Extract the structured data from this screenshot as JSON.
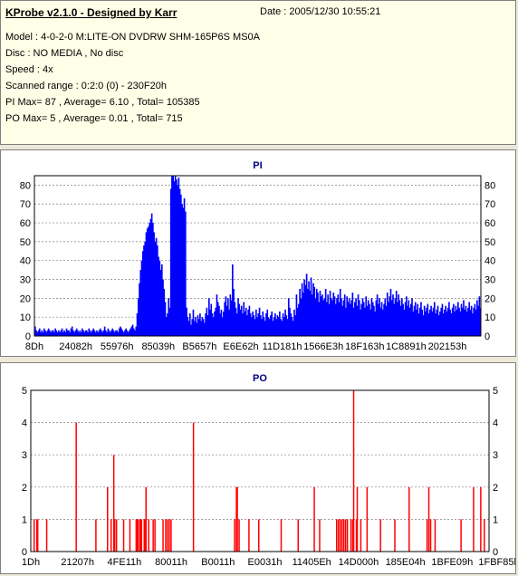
{
  "info": {
    "title": "KProbe v2.1.0 - Designed by Karr",
    "date": "Date : 2005/12/30 10:55:21",
    "model": "Model : 4-0-2-0 M:LITE-ON DVDRW SHM-165P6S MS0A",
    "disc": "Disc : NO MEDIA , No disc",
    "speed": "Speed : 4x",
    "scanned_range": "Scanned range : 0:2:0 (0) - 230F20h",
    "pi_stats": "PI Max= 87 , Average= 6.10 , Total= 105385",
    "po_stats": "PO Max= 5 , Average= 0.01 , Total= 715"
  },
  "colors": {
    "info_bg": "#ffffe7",
    "window_bg": "#ece9d8",
    "title_color": "#000080",
    "pi_bar": "#0000ff",
    "po_bar": "#ff0000",
    "grid": "#808080"
  },
  "chart_data": [
    {
      "type": "bar",
      "title": "PI",
      "ylim": [
        0,
        85
      ],
      "yticks": [
        "0",
        "10",
        "20",
        "30",
        "40",
        "50",
        "60",
        "70",
        "80"
      ],
      "xticks": [
        "8Dh",
        "24082h",
        "55976h",
        "85039h",
        "B5657h",
        "E6E62h",
        "11D181h",
        "1566E3h",
        "18F163h",
        "1C8891h",
        "202153h"
      ],
      "grid": "dashed horizontal",
      "series": [
        {
          "values": [
            5,
            3,
            2,
            3,
            4,
            2,
            3,
            2,
            4,
            3,
            2,
            3,
            4,
            3,
            2,
            3,
            3,
            2,
            4,
            3,
            2,
            3,
            2,
            3,
            4,
            2,
            3,
            2,
            4,
            3,
            3,
            2,
            4,
            5,
            3,
            2,
            3,
            4,
            3,
            2,
            3,
            2,
            4,
            3,
            2,
            3,
            3,
            2,
            4,
            3,
            2,
            3,
            4,
            3,
            2,
            3,
            2,
            3,
            4,
            3,
            2,
            3,
            5,
            3,
            2,
            4,
            3,
            2,
            3,
            4,
            3,
            2,
            3,
            3,
            2,
            4,
            5,
            4,
            3,
            2,
            3,
            4,
            3,
            2,
            3,
            4,
            5,
            6,
            4,
            3,
            5,
            12,
            20,
            28,
            35,
            40,
            45,
            48,
            50,
            55,
            57,
            58,
            60,
            62,
            65,
            60,
            55,
            50,
            52,
            48,
            42,
            40,
            35,
            38,
            30,
            25,
            18,
            10,
            12,
            20,
            15,
            78,
            85,
            87,
            82,
            86,
            83,
            80,
            84,
            78,
            75,
            70,
            68,
            73,
            66,
            15,
            10,
            8,
            12,
            6,
            9,
            14,
            8,
            10,
            7,
            11,
            9,
            12,
            8,
            10,
            9,
            7,
            12,
            15,
            11,
            20,
            14,
            17,
            12,
            10,
            13,
            15,
            22,
            18,
            16,
            12,
            14,
            10,
            13,
            18,
            21,
            16,
            20,
            14,
            22,
            19,
            38,
            25,
            18,
            15,
            12,
            20,
            17,
            14,
            16,
            12,
            18,
            13,
            15,
            11,
            14,
            16,
            12,
            10,
            13,
            11,
            9,
            14,
            10,
            12,
            15,
            11,
            9,
            13,
            10,
            8,
            12,
            14,
            10,
            9,
            11,
            13,
            8,
            10,
            12,
            9,
            11,
            10,
            13,
            9,
            8,
            12,
            10,
            14,
            11,
            9,
            20,
            15,
            12,
            10,
            8,
            14,
            11,
            22,
            15,
            17,
            25,
            20,
            28,
            23,
            30,
            27,
            33,
            25,
            29,
            24,
            31,
            22,
            28,
            26,
            20,
            25,
            23,
            18,
            24,
            21,
            22,
            19,
            20,
            25,
            18,
            22,
            17,
            24,
            20,
            19,
            23,
            21,
            17,
            20,
            22,
            18,
            25,
            20,
            16,
            19,
            22,
            15,
            21,
            18,
            20,
            17,
            19,
            23,
            15,
            18,
            20,
            16,
            22,
            19,
            14,
            17,
            20,
            18,
            15,
            21,
            16,
            19,
            17,
            14,
            20,
            18,
            16,
            13,
            19,
            22,
            17,
            20,
            15,
            18,
            14,
            17,
            20,
            16,
            23,
            18,
            21,
            25,
            19,
            22,
            17,
            20,
            24,
            18,
            22,
            19,
            16,
            20,
            17,
            14,
            18,
            21,
            16,
            19,
            15,
            17,
            20,
            13,
            16,
            18,
            14,
            17,
            12,
            15,
            18,
            14,
            11,
            16,
            13,
            15,
            17,
            12,
            14,
            16,
            13,
            15,
            18,
            12,
            14,
            16,
            11,
            13,
            15,
            17,
            12,
            14,
            16,
            13,
            15,
            18,
            14,
            12,
            15,
            17,
            13,
            16,
            14,
            18,
            15,
            13,
            17,
            15,
            19,
            14,
            16,
            13,
            15,
            18,
            14,
            16,
            12,
            15,
            17,
            14,
            19,
            16,
            21,
            15
          ]
        }
      ]
    },
    {
      "type": "bar",
      "title": "PO",
      "ylim": [
        0,
        5
      ],
      "yticks": [
        "0",
        "1",
        "2",
        "3",
        "4",
        "5"
      ],
      "xticks": [
        "1Dh",
        "21207h",
        "4FE11h",
        "80011h",
        "B0011h",
        "E0031h",
        "11405Eh",
        "14D000h",
        "185E04h",
        "1BFE09h",
        "1FBF85h"
      ],
      "grid": "dashed horizontal",
      "series": [
        {
          "points": [
            [
              3,
              1
            ],
            [
              6,
              1
            ],
            [
              7,
              1
            ],
            [
              17,
              1
            ],
            [
              50,
              4
            ],
            [
              72,
              1
            ],
            [
              85,
              2
            ],
            [
              89,
              1
            ],
            [
              92,
              3
            ],
            [
              93,
              1
            ],
            [
              95,
              1
            ],
            [
              103,
              1
            ],
            [
              110,
              1
            ],
            [
              117,
              1
            ],
            [
              118,
              1
            ],
            [
              119,
              1
            ],
            [
              121,
              1
            ],
            [
              122,
              1
            ],
            [
              123,
              1
            ],
            [
              126,
              1
            ],
            [
              127,
              1
            ],
            [
              128,
              2
            ],
            [
              131,
              1
            ],
            [
              136,
              1
            ],
            [
              138,
              1
            ],
            [
              147,
              1
            ],
            [
              150,
              1
            ],
            [
              152,
              1
            ],
            [
              154,
              1
            ],
            [
              156,
              1
            ],
            [
              181,
              4
            ],
            [
              227,
              1
            ],
            [
              229,
              2
            ],
            [
              230,
              2
            ],
            [
              232,
              1
            ],
            [
              243,
              1
            ],
            [
              254,
              1
            ],
            [
              279,
              1
            ],
            [
              298,
              1
            ],
            [
              316,
              2
            ],
            [
              322,
              1
            ],
            [
              341,
              1
            ],
            [
              343,
              1
            ],
            [
              345,
              1
            ],
            [
              347,
              1
            ],
            [
              349,
              1
            ],
            [
              351,
              1
            ],
            [
              353,
              1
            ],
            [
              357,
              1
            ],
            [
              359,
              1
            ],
            [
              360,
              5
            ],
            [
              363,
              1
            ],
            [
              364,
              2
            ],
            [
              368,
              1
            ],
            [
              375,
              2
            ],
            [
              390,
              1
            ],
            [
              406,
              1
            ],
            [
              422,
              2
            ],
            [
              442,
              1
            ],
            [
              444,
              2
            ],
            [
              446,
              1
            ],
            [
              451,
              1
            ],
            [
              480,
              1
            ],
            [
              494,
              2
            ],
            [
              502,
              2
            ],
            [
              506,
              1
            ]
          ]
        }
      ]
    }
  ]
}
